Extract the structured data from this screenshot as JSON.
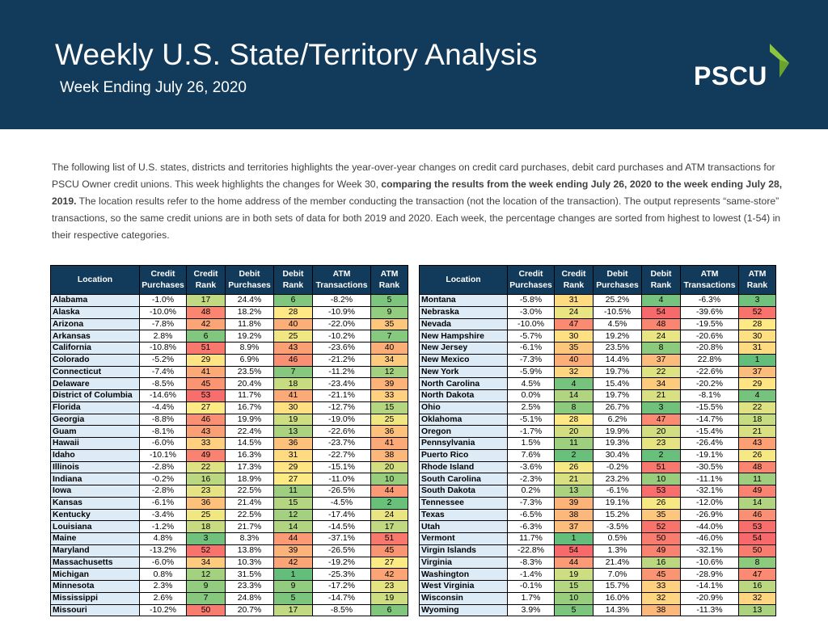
{
  "header": {
    "title": "Weekly U.S. State/Territory Analysis",
    "subtitle": "Week Ending July 26, 2020",
    "logo_text": "PSCU"
  },
  "intro": {
    "p1": "The following list of U.S. states, districts and territories highlights the year-over-year changes on credit card purchases, debit card purchases and ATM transactions for PSCU Owner credit unions. This week highlights the changes for Week 30, ",
    "bold": "comparing the results from the week ending July 26, 2020 to the week ending July 28, 2019.",
    "p2": " The location results refer to the home address of the member conducting the transaction (not the location of the transaction). The output represents “same-store” transactions, so the same credit unions are in both sets of data for both 2019 and 2020. Each week, the percentage changes are sorted from highest to lowest (1-54) in their respective categories."
  },
  "columns": [
    "Location",
    "Credit Purchases",
    "Credit Rank",
    "Debit Purchases",
    "Debit Rank",
    "ATM Transactions",
    "ATM Rank"
  ],
  "rank_colors": {
    "green": "#63be7b",
    "yellow": "#ffeb84",
    "red": "#f8696b"
  },
  "left_rows": [
    [
      "Alabama",
      "-1.0%",
      "17",
      "24.4%",
      "6",
      "-8.2%",
      "5"
    ],
    [
      "Alaska",
      "-10.0%",
      "48",
      "18.2%",
      "28",
      "-10.9%",
      "9"
    ],
    [
      "Arizona",
      "-7.8%",
      "42",
      "11.8%",
      "40",
      "-22.0%",
      "35"
    ],
    [
      "Arkansas",
      "2.8%",
      "6",
      "19.2%",
      "25",
      "-10.2%",
      "7"
    ],
    [
      "California",
      "-10.8%",
      "51",
      "8.9%",
      "43",
      "-23.6%",
      "40"
    ],
    [
      "Colorado",
      "-5.2%",
      "29",
      "6.9%",
      "46",
      "-21.2%",
      "34"
    ],
    [
      "Connecticut",
      "-7.4%",
      "41",
      "23.5%",
      "7",
      "-11.2%",
      "12"
    ],
    [
      "Delaware",
      "-8.5%",
      "45",
      "20.4%",
      "18",
      "-23.4%",
      "39"
    ],
    [
      "District of Columbia",
      "-14.6%",
      "53",
      "11.7%",
      "41",
      "-21.1%",
      "33"
    ],
    [
      "Florida",
      "-4.4%",
      "27",
      "16.7%",
      "30",
      "-12.7%",
      "15"
    ],
    [
      "Georgia",
      "-8.8%",
      "46",
      "19.9%",
      "19",
      "-19.0%",
      "25"
    ],
    [
      "Guam",
      "-8.1%",
      "43",
      "22.4%",
      "13",
      "-22.6%",
      "36"
    ],
    [
      "Hawaii",
      "-6.0%",
      "33",
      "14.5%",
      "36",
      "-23.7%",
      "41"
    ],
    [
      "Idaho",
      "-10.1%",
      "49",
      "16.3%",
      "31",
      "-22.7%",
      "38"
    ],
    [
      "Illinois",
      "-2.8%",
      "22",
      "17.3%",
      "29",
      "-15.1%",
      "20"
    ],
    [
      "Indiana",
      "-0.2%",
      "16",
      "18.9%",
      "27",
      "-11.0%",
      "10"
    ],
    [
      "Iowa",
      "-2.8%",
      "23",
      "22.5%",
      "11",
      "-26.5%",
      "44"
    ],
    [
      "Kansas",
      "-6.1%",
      "36",
      "21.4%",
      "15",
      "-4.5%",
      "2"
    ],
    [
      "Kentucky",
      "-3.4%",
      "25",
      "22.5%",
      "12",
      "-17.4%",
      "24"
    ],
    [
      "Louisiana",
      "-1.2%",
      "18",
      "21.7%",
      "14",
      "-14.5%",
      "17"
    ],
    [
      "Maine",
      "4.8%",
      "3",
      "8.3%",
      "44",
      "-37.1%",
      "51"
    ],
    [
      "Maryland",
      "-13.2%",
      "52",
      "13.8%",
      "39",
      "-26.5%",
      "45"
    ],
    [
      "Massachusetts",
      "-6.0%",
      "34",
      "10.3%",
      "42",
      "-19.2%",
      "27"
    ],
    [
      "Michigan",
      "0.8%",
      "12",
      "31.5%",
      "1",
      "-25.3%",
      "42"
    ],
    [
      "Minnesota",
      "2.3%",
      "9",
      "23.3%",
      "9",
      "-17.2%",
      "23"
    ],
    [
      "Mississippi",
      "2.6%",
      "7",
      "24.8%",
      "5",
      "-14.7%",
      "19"
    ],
    [
      "Missouri",
      "-10.2%",
      "50",
      "20.7%",
      "17",
      "-8.5%",
      "6"
    ]
  ],
  "right_rows": [
    [
      "Montana",
      "-5.8%",
      "31",
      "25.2%",
      "4",
      "-6.3%",
      "3"
    ],
    [
      "Nebraska",
      "-3.0%",
      "24",
      "-10.5%",
      "54",
      "-39.6%",
      "52"
    ],
    [
      "Nevada",
      "-10.0%",
      "47",
      "4.5%",
      "48",
      "-19.5%",
      "28"
    ],
    [
      "New Hampshire",
      "-5.7%",
      "30",
      "19.2%",
      "24",
      "-20.6%",
      "30"
    ],
    [
      "New Jersey",
      "-6.1%",
      "35",
      "23.5%",
      "8",
      "-20.8%",
      "31"
    ],
    [
      "New Mexico",
      "-7.3%",
      "40",
      "14.4%",
      "37",
      "22.8%",
      "1"
    ],
    [
      "New York",
      "-5.9%",
      "32",
      "19.7%",
      "22",
      "-22.6%",
      "37"
    ],
    [
      "North Carolina",
      "4.5%",
      "4",
      "15.4%",
      "34",
      "-20.2%",
      "29"
    ],
    [
      "North Dakota",
      "0.0%",
      "14",
      "19.7%",
      "21",
      "-8.1%",
      "4"
    ],
    [
      "Ohio",
      "2.5%",
      "8",
      "26.7%",
      "3",
      "-15.5%",
      "22"
    ],
    [
      "Oklahoma",
      "-5.1%",
      "28",
      "6.2%",
      "47",
      "-14.7%",
      "18"
    ],
    [
      "Oregon",
      "-1.7%",
      "20",
      "19.9%",
      "20",
      "-15.4%",
      "21"
    ],
    [
      "Pennsylvania",
      "1.5%",
      "11",
      "19.3%",
      "23",
      "-26.4%",
      "43"
    ],
    [
      "Puerto Rico",
      "7.6%",
      "2",
      "30.4%",
      "2",
      "-19.1%",
      "26"
    ],
    [
      "Rhode Island",
      "-3.6%",
      "26",
      "-0.2%",
      "51",
      "-30.5%",
      "48"
    ],
    [
      "South Carolina",
      "-2.3%",
      "21",
      "23.2%",
      "10",
      "-11.1%",
      "11"
    ],
    [
      "South Dakota",
      "0.2%",
      "13",
      "-6.1%",
      "53",
      "-32.1%",
      "49"
    ],
    [
      "Tennessee",
      "-7.3%",
      "39",
      "19.1%",
      "26",
      "-12.0%",
      "14"
    ],
    [
      "Texas",
      "-6.5%",
      "38",
      "15.2%",
      "35",
      "-26.9%",
      "46"
    ],
    [
      "Utah",
      "-6.3%",
      "37",
      "-3.5%",
      "52",
      "-44.0%",
      "53"
    ],
    [
      "Vermont",
      "11.7%",
      "1",
      "0.5%",
      "50",
      "-46.0%",
      "54"
    ],
    [
      "Virgin Islands",
      "-22.8%",
      "54",
      "1.3%",
      "49",
      "-32.1%",
      "50"
    ],
    [
      "Virginia",
      "-8.3%",
      "44",
      "21.4%",
      "16",
      "-10.6%",
      "8"
    ],
    [
      "Washington",
      "-1.4%",
      "19",
      "7.0%",
      "45",
      "-28.9%",
      "47"
    ],
    [
      "West Virginia",
      "-0.1%",
      "15",
      "15.7%",
      "33",
      "-14.1%",
      "16"
    ],
    [
      "Wisconsin",
      "1.7%",
      "10",
      "16.0%",
      "32",
      "-20.9%",
      "32"
    ],
    [
      "Wyoming",
      "3.9%",
      "5",
      "14.3%",
      "38",
      "-11.3%",
      "13"
    ]
  ]
}
